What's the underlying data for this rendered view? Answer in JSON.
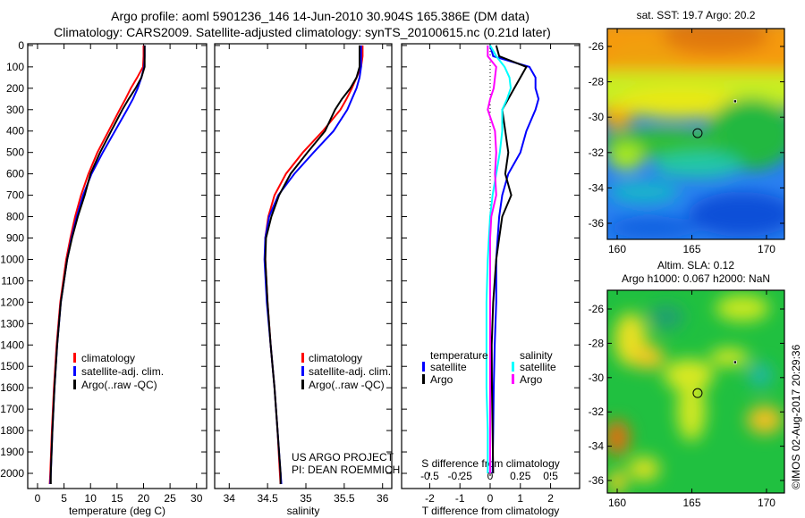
{
  "title_line1": "Argo profile: aoml 5901236_146 14-Jun-2010 30.904S 165.386E (DM data)",
  "title_line2": "Climatology: CARS2009. Satellite-adjusted climatology: synTS_20100615.nc (0.21d later)",
  "colors": {
    "climatology": "#ff0000",
    "satellite": "#0000ff",
    "argo": "#000000",
    "sal_satellite": "#00ffff",
    "sal_argo": "#ff00ff"
  },
  "depth_axis": {
    "ticks": [
      0,
      100,
      200,
      300,
      400,
      500,
      600,
      700,
      800,
      900,
      1000,
      1100,
      1200,
      1300,
      1400,
      1500,
      1600,
      1700,
      1800,
      1900,
      2000
    ],
    "ylim": [
      -8,
      2071
    ],
    "inverted": true
  },
  "legend_tempsal": {
    "climatology": "climatology",
    "satellite": "satellite-adj. clim.",
    "argo": "Argo(..raw -QC)"
  },
  "legend_diff": {
    "temperature": "temperature",
    "salinity": "salinity",
    "satellite": "satellite",
    "argo": "Argo"
  },
  "project": {
    "line1": "US ARGO PROJECT",
    "line2": "PI: DEAN ROEMMICH"
  },
  "chart_data": [
    {
      "type": "line",
      "id": "temperature",
      "xlabel": "temperature (deg C)",
      "ylabel": "depth",
      "xlim": [
        -1.85,
        31.9
      ],
      "xticks": [
        0,
        5,
        10,
        15,
        20,
        25,
        30
      ],
      "depth": [
        0,
        50,
        100,
        150,
        200,
        250,
        300,
        400,
        500,
        600,
        700,
        800,
        900,
        1000,
        1200,
        1400,
        1600,
        1800,
        2000,
        2050
      ],
      "series": [
        {
          "name": "climatology",
          "color": "#ff0000",
          "values": [
            20.0,
            20.0,
            19.9,
            18.8,
            17.6,
            16.6,
            15.5,
            13.4,
            11.3,
            9.6,
            8.2,
            7.1,
            6.2,
            5.4,
            4.3,
            3.6,
            3.1,
            2.7,
            2.4,
            2.3
          ]
        },
        {
          "name": "satellite-adj. clim.",
          "color": "#0000ff",
          "values": [
            20.2,
            20.2,
            20.1,
            19.6,
            18.9,
            18.0,
            16.9,
            14.6,
            12.3,
            10.2,
            8.6,
            7.4,
            6.4,
            5.6,
            4.4,
            3.7,
            3.2,
            2.8,
            2.5,
            2.4
          ]
        },
        {
          "name": "Argo(..raw -QC)",
          "color": "#000000",
          "values": [
            20.2,
            20.2,
            20.2,
            19.6,
            18.5,
            17.2,
            16.0,
            13.9,
            11.8,
            10.0,
            8.9,
            7.6,
            6.5,
            5.6,
            4.4,
            3.7,
            3.2,
            2.8,
            2.5,
            2.5
          ]
        }
      ]
    },
    {
      "type": "line",
      "id": "salinity",
      "xlabel": "salinity",
      "ylabel": "depth",
      "xlim": [
        33.81,
        36.12
      ],
      "xticks": [
        34,
        34.5,
        35,
        35.5,
        36
      ],
      "depth": [
        0,
        50,
        100,
        150,
        200,
        250,
        300,
        400,
        500,
        600,
        700,
        800,
        900,
        1000,
        1200,
        1400,
        1600,
        1800,
        2000,
        2050
      ],
      "series": [
        {
          "name": "climatology",
          "color": "#ff0000",
          "values": [
            35.74,
            35.74,
            35.72,
            35.66,
            35.6,
            35.53,
            35.45,
            35.22,
            34.96,
            34.74,
            34.59,
            34.51,
            34.47,
            34.47,
            34.5,
            34.54,
            34.59,
            34.63,
            34.66,
            34.67
          ]
        },
        {
          "name": "satellite-adj. clim.",
          "color": "#0000ff",
          "values": [
            35.72,
            35.72,
            35.72,
            35.7,
            35.66,
            35.6,
            35.54,
            35.36,
            35.1,
            34.85,
            34.64,
            34.52,
            34.47,
            34.46,
            34.49,
            34.54,
            34.59,
            34.63,
            34.67,
            34.68
          ]
        },
        {
          "name": "Argo(..raw -QC)",
          "color": "#000000",
          "values": [
            35.7,
            35.7,
            35.7,
            35.66,
            35.58,
            35.47,
            35.38,
            35.25,
            35.02,
            34.8,
            34.65,
            34.55,
            34.48,
            34.47,
            34.5,
            34.54,
            34.59,
            34.63,
            34.67,
            34.67
          ]
        }
      ]
    },
    {
      "type": "line",
      "id": "difference",
      "xlabel": "T difference from climatology",
      "x2label": "S difference from climatology",
      "xlim": [
        -2.93,
        2.96
      ],
      "xticks": [
        -2,
        -1,
        0,
        1,
        2
      ],
      "x2ticks": [
        -0.5,
        -0.25,
        0,
        0.25,
        0.5
      ],
      "x2tick_labels": [
        "-0.5",
        "-0.25",
        "0",
        "0.25",
        "0.5"
      ],
      "depth": [
        0,
        50,
        100,
        150,
        200,
        250,
        300,
        400,
        500,
        600,
        700,
        800,
        900,
        1000,
        1200,
        1400,
        1600,
        1800,
        2000
      ],
      "series": [
        {
          "name": "temperature satellite",
          "color": "#0000ff",
          "units": "degC",
          "values": [
            0.0,
            0.1,
            1.3,
            1.5,
            1.5,
            1.6,
            1.5,
            1.2,
            1.0,
            0.6,
            0.4,
            0.3,
            0.25,
            0.2,
            0.2,
            0.15,
            0.12,
            0.1,
            0.08
          ]
        },
        {
          "name": "temperature Argo",
          "color": "#000000",
          "units": "degC",
          "values": [
            0.2,
            0.3,
            1.2,
            1.0,
            0.8,
            0.6,
            0.4,
            0.5,
            0.6,
            0.5,
            0.7,
            0.4,
            0.3,
            0.2,
            0.1,
            0.05,
            0.06,
            0.08,
            0.1
          ]
        },
        {
          "name": "salinity satellite",
          "color": "#00ffff",
          "units": "psu",
          "values": [
            0.0,
            0.05,
            0.12,
            0.16,
            0.17,
            0.14,
            0.1,
            0.1,
            0.08,
            0.05,
            0.02,
            0.0,
            -0.01,
            -0.02,
            -0.03,
            -0.03,
            -0.03,
            -0.02,
            -0.02
          ]
        },
        {
          "name": "salinity Argo",
          "color": "#ff00ff",
          "units": "psu",
          "values": [
            -0.02,
            -0.02,
            0.05,
            0.04,
            0.03,
            0.0,
            -0.02,
            0.04,
            0.05,
            0.04,
            0.05,
            0.01,
            0.0,
            0.0,
            0.0,
            0.0,
            0.0,
            0.0,
            0.0
          ]
        }
      ]
    },
    {
      "type": "heatmap",
      "id": "sst-map",
      "title": "sat. SST: 19.7 Argo: 20.2",
      "xlim": [
        159.34,
        171.2
      ],
      "ylim": [
        -36.9,
        -25.0
      ],
      "xticks": [
        160,
        165,
        170
      ],
      "yticks": [
        -26,
        -28,
        -30,
        -32,
        -34,
        -36
      ],
      "ytick_labels": [
        "-26",
        "-28",
        "-30",
        "-32",
        "-34",
        "-36"
      ],
      "profile_position": {
        "lon": 165.386,
        "lat": -30.904
      },
      "other_float": {
        "lon": 167.9,
        "lat": -29.1
      }
    },
    {
      "type": "heatmap",
      "id": "sla-map",
      "title": "Altim. SLA: 0.12",
      "subtitle": "Argo h1000: 0.067 h2000: NaN",
      "xlim": [
        159.34,
        171.2
      ],
      "ylim": [
        -36.9,
        -25.0
      ],
      "xticks": [
        160,
        165,
        170
      ],
      "yticks": [
        -26,
        -28,
        -30,
        -32,
        -34,
        -36
      ],
      "ytick_labels": [
        "-26",
        "-28",
        "-30",
        "-32",
        "-34",
        "-36"
      ],
      "profile_position": {
        "lon": 165.386,
        "lat": -30.904
      },
      "other_float": {
        "lon": 167.9,
        "lat": -29.1
      }
    }
  ],
  "credit": "©IMOS 02-Aug-2017 20:29:36"
}
